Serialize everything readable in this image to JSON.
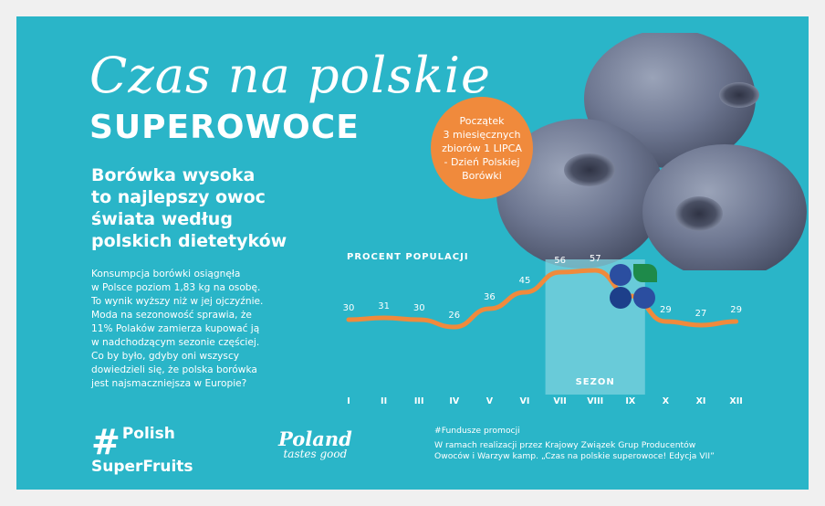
{
  "headline": {
    "script": "Czas na polskie",
    "bold": "SUPEROWOCE"
  },
  "subtitle": [
    "Borówka wysoka",
    "to najlepszy owoc",
    "świata według",
    "polskich dietetyków"
  ],
  "body": [
    "Konsumpcja borówki osiągnęła",
    "w Polsce poziom 1,83 kg na osobę.",
    "To wynik wyższy niż w jej ojczyźnie.",
    "Moda na sezonowość sprawia, że",
    "11% Polaków zamierza kupować ją",
    "w nadchodzącym sezonie częściej.",
    "Co by było, gdyby oni wszyscy",
    "dowiedzieli się, że polska borówka",
    "jest najsmaczniejsza w Europie?"
  ],
  "badge": [
    "Początek",
    "3 miesięcznych",
    "zbiorów 1 LIPCA",
    "- Dzień Polskiej",
    "Borówki"
  ],
  "chart_data": {
    "type": "line",
    "title": "PROCENT POPULACJI",
    "categories": [
      "I",
      "II",
      "III",
      "IV",
      "V",
      "VI",
      "VII",
      "VIII",
      "IX",
      "X",
      "XI",
      "XII"
    ],
    "values": [
      30,
      31,
      30,
      26,
      36,
      45,
      56,
      57,
      43,
      29,
      27,
      29
    ],
    "highlight": {
      "label": "SEZON",
      "categories": [
        "VII",
        "VIII",
        "IX"
      ]
    },
    "hidden_label_index": 8,
    "ylim": [
      20,
      62
    ],
    "line_color": "#f08a3c",
    "highlight_color": "#7fd3df",
    "text_color": "#ffffff"
  },
  "footer": {
    "hashtag_mark": "#",
    "hashtag_line1": "Polish",
    "hashtag_line2": "SuperFruits",
    "poland_line1": "Poland",
    "poland_line2": "tastes good",
    "funds_tag": "#Fundusze promocji",
    "funds_line1": "W ramach realizacji przez Krajowy Związek Grup Producentów",
    "funds_line2": "Owoców i Warzyw kamp. „Czas na polskie superowoce! Edycja VII”"
  },
  "colors": {
    "background": "#2ab5c8",
    "accent": "#f08a3c",
    "blueberry": "#5a6480"
  }
}
